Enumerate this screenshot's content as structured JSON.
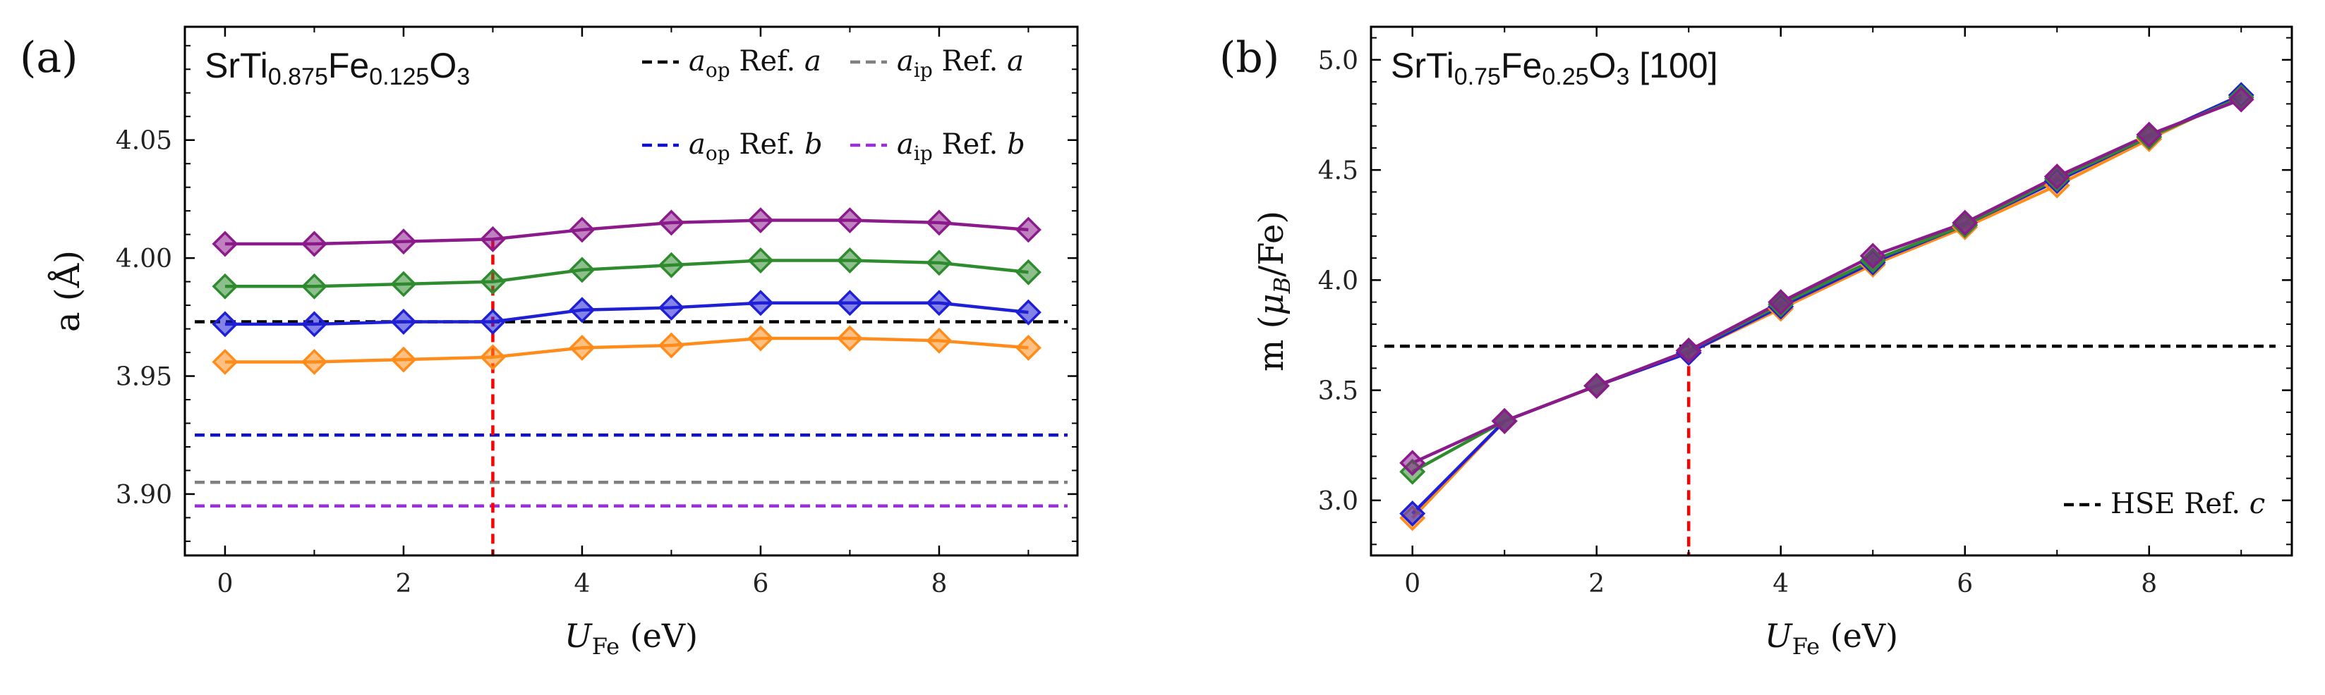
{
  "chart_data": [
    {
      "type": "line",
      "panel_label": "(a)",
      "title": {
        "main": "SrTi",
        "sub1": "0.875",
        "mid": "Fe",
        "sub2": "0.125",
        "end": "O",
        "sub3": "3"
      },
      "xlabel": {
        "var": "U",
        "sub": "Fe",
        "unit": "(eV)"
      },
      "ylabel": "a (Å)",
      "xlim": [
        -0.45,
        9.55
      ],
      "ylim": [
        3.874,
        4.098
      ],
      "xticks": [
        0,
        2,
        4,
        6,
        8
      ],
      "xtick_labels": [
        "0",
        "2",
        "4",
        "6",
        "8"
      ],
      "yticks": [
        3.9,
        3.95,
        4.0,
        4.05
      ],
      "ytick_labels": [
        "3.90",
        "3.95",
        "4.00",
        "4.05"
      ],
      "x": [
        0,
        1,
        2,
        3,
        4,
        5,
        6,
        7,
        8,
        9
      ],
      "series": [
        {
          "name": "orange",
          "color": "#ff8c1a",
          "values": [
            3.956,
            3.956,
            3.957,
            3.958,
            3.962,
            3.963,
            3.966,
            3.966,
            3.965,
            3.962
          ]
        },
        {
          "name": "blue",
          "color": "#1f1fd6",
          "values": [
            3.972,
            3.972,
            3.973,
            3.973,
            3.978,
            3.979,
            3.981,
            3.981,
            3.981,
            3.977
          ]
        },
        {
          "name": "green",
          "color": "#2e8b2e",
          "values": [
            3.988,
            3.988,
            3.989,
            3.99,
            3.995,
            3.997,
            3.999,
            3.999,
            3.998,
            3.994
          ]
        },
        {
          "name": "purple",
          "color": "#8b1a8b",
          "values": [
            4.006,
            4.006,
            4.007,
            4.008,
            4.012,
            4.015,
            4.016,
            4.016,
            4.015,
            4.012
          ]
        }
      ],
      "reference_lines": [
        {
          "name": "aop-ref-a",
          "y": 3.973,
          "color": "#000000"
        },
        {
          "name": "aop-ref-b",
          "y": 3.925,
          "color": "#1010c8"
        },
        {
          "name": "aip-ref-a",
          "y": 3.905,
          "color": "#808080"
        },
        {
          "name": "aip-ref-b",
          "y": 3.895,
          "color": "#9b30d9"
        }
      ],
      "vertical_marker": {
        "x": 3,
        "y_top": 4.008,
        "color": "#ff0000"
      },
      "legend": [
        {
          "sym": "a",
          "sub": "op",
          "ref": "Ref.",
          "tag": "a",
          "color": "#000000"
        },
        {
          "sym": "a",
          "sub": "ip",
          "ref": "Ref.",
          "tag": "a",
          "color": "#808080"
        },
        {
          "sym": "a",
          "sub": "op",
          "ref": "Ref.",
          "tag": "b",
          "color": "#1010c8"
        },
        {
          "sym": "a",
          "sub": "ip",
          "ref": "Ref.",
          "tag": "b",
          "color": "#9b30d9"
        }
      ],
      "legend_position": "top-right"
    },
    {
      "type": "line",
      "panel_label": "(b)",
      "title": {
        "main": "SrTi",
        "sub1": "0.75",
        "mid": "Fe",
        "sub2": "0.25",
        "end": "O",
        "sub3": "3",
        "suffix": "[100]"
      },
      "xlabel": {
        "var": "U",
        "sub": "Fe",
        "unit": "(eV)"
      },
      "ylabel": {
        "pre": "m (",
        "mu": "μ",
        "sub": "B",
        "post": "/Fe)"
      },
      "xlim": [
        -0.45,
        9.55
      ],
      "ylim": [
        2.75,
        5.15
      ],
      "xticks": [
        0,
        2,
        4,
        6,
        8
      ],
      "xtick_labels": [
        "0",
        "2",
        "4",
        "6",
        "8"
      ],
      "yticks": [
        3.0,
        3.5,
        4.0,
        4.5,
        5.0
      ],
      "ytick_labels": [
        "3.0",
        "3.5",
        "4.0",
        "4.5",
        "5.0"
      ],
      "x": [
        0,
        1,
        2,
        3,
        4,
        5,
        6,
        7,
        8,
        9
      ],
      "series": [
        {
          "name": "orange",
          "color": "#ff8c1a",
          "values": [
            2.92,
            3.36,
            3.52,
            3.67,
            3.87,
            4.07,
            4.24,
            4.43,
            4.64,
            4.84
          ]
        },
        {
          "name": "blue",
          "color": "#1f1fd6",
          "values": [
            2.94,
            3.36,
            3.52,
            3.67,
            3.88,
            4.08,
            4.25,
            4.45,
            4.65,
            4.84
          ]
        },
        {
          "name": "green",
          "color": "#2e8b2e",
          "values": [
            3.13,
            3.36,
            3.52,
            3.68,
            3.89,
            4.09,
            4.25,
            4.46,
            4.65,
            4.83
          ]
        },
        {
          "name": "purple",
          "color": "#8b1a8b",
          "values": [
            3.17,
            3.36,
            3.52,
            3.68,
            3.9,
            4.11,
            4.26,
            4.47,
            4.66,
            4.82
          ]
        }
      ],
      "reference_lines": [
        {
          "name": "hse-ref-c",
          "y": 3.7,
          "color": "#000000"
        }
      ],
      "vertical_marker": {
        "x": 3,
        "y_top": 3.68,
        "color": "#ff0000"
      },
      "legend": [
        {
          "text": "HSE Ref.",
          "tag": "c",
          "color": "#000000"
        }
      ],
      "legend_position": "bottom-right"
    }
  ]
}
